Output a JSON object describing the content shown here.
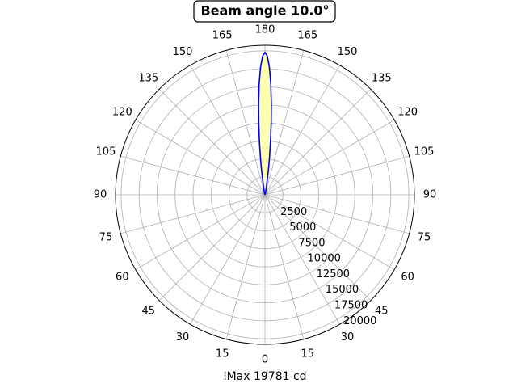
{
  "chart_data": {
    "type": "polar",
    "title": "Beam angle 10.0°",
    "xlabel": "IMax 19781 cd",
    "theta": [
      -20,
      -15,
      -12,
      -10,
      -8,
      -7,
      -6,
      -5,
      -4,
      -3,
      -2,
      -1,
      0,
      1,
      2,
      3,
      4,
      5,
      6,
      7,
      8,
      10,
      12,
      15,
      20
    ],
    "series": [
      {
        "color": "#0000ee",
        "fill": "#ffffb0",
        "values": [
          0,
          39,
          365,
          1236,
          3355,
          5086,
          7292,
          9891,
          12693,
          15414,
          17705,
          19241,
          19781,
          19241,
          17705,
          15414,
          12693,
          9891,
          7292,
          5086,
          3355,
          1236,
          365,
          39,
          0
        ]
      }
    ],
    "rlim": [
      0,
      20770
    ],
    "rticks": [
      2500,
      5000,
      7500,
      10000,
      12500,
      15000,
      17500,
      20000
    ],
    "thetaticks": [
      {
        "value": 0,
        "label": "180"
      },
      {
        "value": 15,
        "label": "165"
      },
      {
        "value": 30,
        "label": "150"
      },
      {
        "value": 45,
        "label": "135"
      },
      {
        "value": 60,
        "label": "120"
      },
      {
        "value": 75,
        "label": "105"
      },
      {
        "value": 90,
        "label": "90"
      },
      {
        "value": 105,
        "label": "75"
      },
      {
        "value": 120,
        "label": "60"
      },
      {
        "value": 135,
        "label": "45"
      },
      {
        "value": 150,
        "label": "30"
      },
      {
        "value": 165,
        "label": "15"
      },
      {
        "value": 180,
        "label": "0"
      },
      {
        "value": 195,
        "label": "15"
      },
      {
        "value": 210,
        "label": "30"
      },
      {
        "value": 225,
        "label": "45"
      },
      {
        "value": 240,
        "label": "60"
      },
      {
        "value": 255,
        "label": "75"
      },
      {
        "value": 270,
        "label": "90"
      },
      {
        "value": 285,
        "label": "105"
      },
      {
        "value": 300,
        "label": "120"
      },
      {
        "value": 315,
        "label": "135"
      },
      {
        "value": 330,
        "label": "150"
      },
      {
        "value": 345,
        "label": "165"
      }
    ],
    "grid": true
  }
}
